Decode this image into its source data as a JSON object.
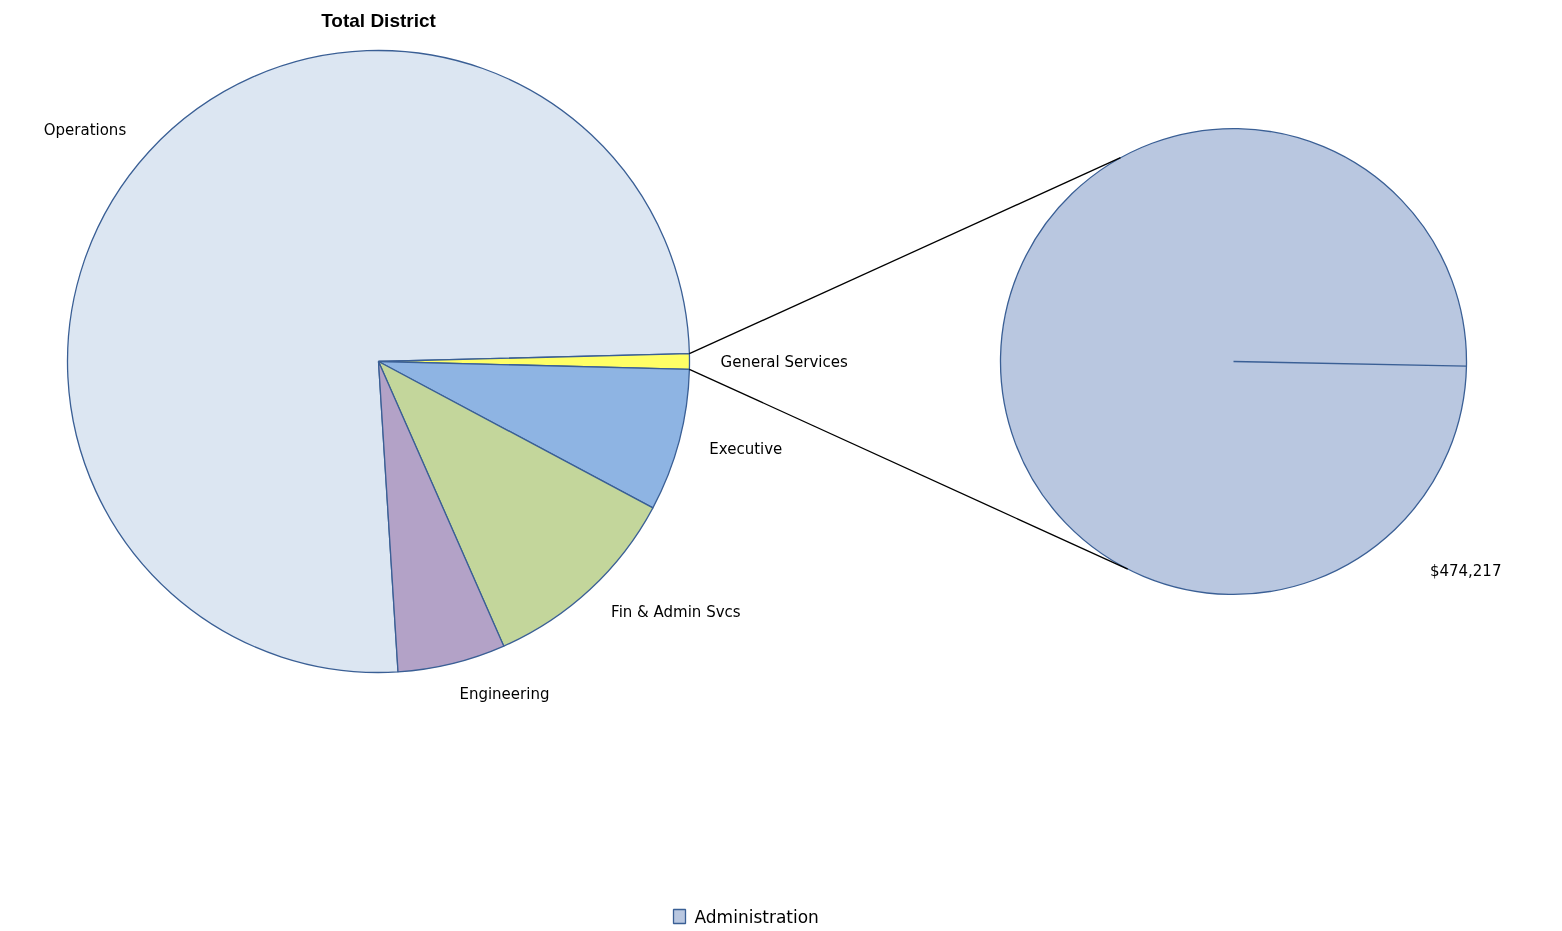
{
  "chart_data": [
    {
      "type": "pie",
      "title": "Total District",
      "categories": [
        "Operations",
        "General Services",
        "Executive",
        "Fin & Admin Svcs",
        "Engineering"
      ],
      "values": [
        75.6,
        0.8,
        7.4,
        10.6,
        5.6
      ],
      "colors": [
        "#dce6f2",
        "#ffff66",
        "#8eb4e3",
        "#c3d69b",
        "#b3a2c7"
      ],
      "legend": false
    },
    {
      "type": "pie",
      "categories": [
        "Administration"
      ],
      "values": [
        474217
      ],
      "colors": [
        "#b9c7e0"
      ],
      "value_labels": [
        "$474,217"
      ],
      "legend": "bottom"
    }
  ]
}
